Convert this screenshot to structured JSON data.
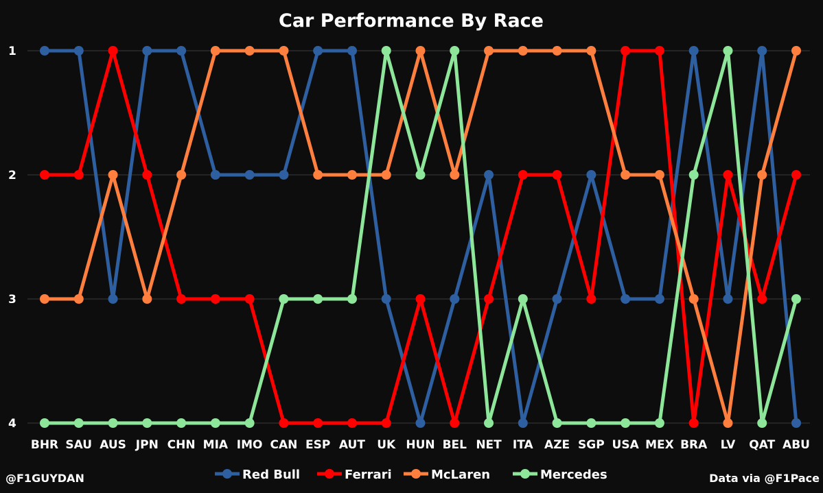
{
  "credit_left": "@F1GUYDAN",
  "credit_right": "Data via @F1Pace",
  "chart_data": {
    "type": "line",
    "title": "Car Performance By Race",
    "xlabel": "",
    "ylabel": "",
    "y_reversed": true,
    "ylim": [
      1,
      4
    ],
    "yticks": [
      "1",
      "2",
      "3",
      "4"
    ],
    "grid": "horizontal",
    "legend_position": "bottom",
    "categories": [
      "BHR",
      "SAU",
      "AUS",
      "JPN",
      "CHN",
      "MIA",
      "IMO",
      "CAN",
      "ESP",
      "AUT",
      "UK",
      "HUN",
      "BEL",
      "NET",
      "ITA",
      "AZE",
      "SGP",
      "USA",
      "MEX",
      "BRA",
      "LV",
      "QAT",
      "ABU"
    ],
    "series": [
      {
        "name": "Red Bull",
        "color": "#2e5fa0",
        "values": [
          1,
          1,
          3,
          1,
          1,
          2,
          2,
          2,
          1,
          1,
          3,
          4,
          3,
          2,
          4,
          3,
          2,
          3,
          3,
          1,
          3,
          1,
          4
        ]
      },
      {
        "name": "Ferrari",
        "color": "#ff0000",
        "values": [
          2,
          2,
          1,
          2,
          3,
          3,
          3,
          4,
          4,
          4,
          4,
          3,
          4,
          3,
          2,
          2,
          3,
          1,
          1,
          4,
          2,
          3,
          2
        ]
      },
      {
        "name": "McLaren",
        "color": "#ff7f3f",
        "values": [
          3,
          3,
          2,
          3,
          2,
          1,
          1,
          1,
          2,
          2,
          2,
          1,
          2,
          1,
          1,
          1,
          1,
          2,
          2,
          3,
          4,
          2,
          1
        ]
      },
      {
        "name": "Mercedes",
        "color": "#8ee69a",
        "values": [
          4,
          4,
          4,
          4,
          4,
          4,
          4,
          3,
          3,
          3,
          1,
          2,
          1,
          4,
          3,
          4,
          4,
          4,
          4,
          2,
          1,
          4,
          3
        ]
      }
    ]
  }
}
